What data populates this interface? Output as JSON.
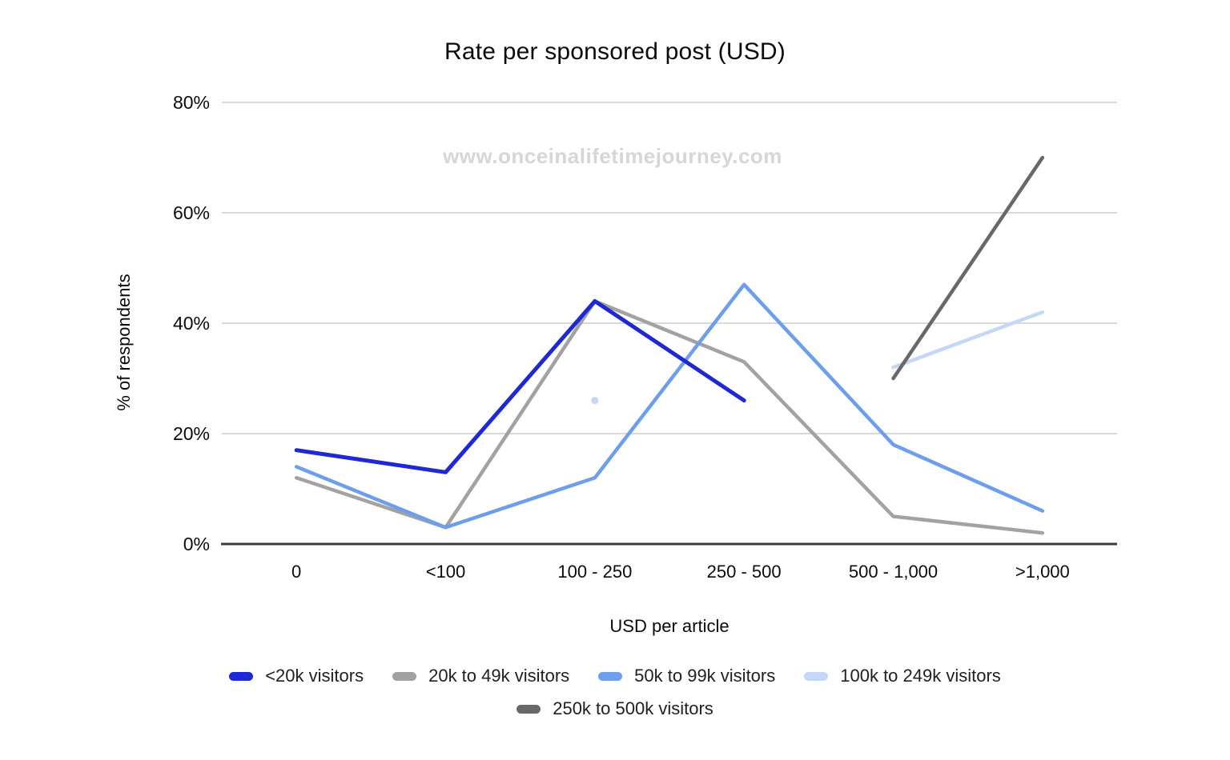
{
  "chart_data": {
    "type": "line",
    "title": "Rate per sponsored post (USD)",
    "watermark": "www.onceinalifetimejourney.com",
    "xlabel": "USD per article",
    "ylabel": "% of respondents",
    "categories": [
      "0",
      "<100",
      "100 - 250",
      "250 - 500",
      "500 - 1,000",
      ">1,000"
    ],
    "y_ticks": [
      {
        "value": 0,
        "label": "0%"
      },
      {
        "value": 20,
        "label": "20%"
      },
      {
        "value": 40,
        "label": "40%"
      },
      {
        "value": 60,
        "label": "60%"
      },
      {
        "value": 80,
        "label": "80%"
      }
    ],
    "ylim": [
      0,
      80
    ],
    "grid": true,
    "legend_position": "bottom",
    "series": [
      {
        "name": "<20k visitors",
        "color": "#1e28d3",
        "values": [
          17,
          13,
          44,
          26,
          null,
          null
        ]
      },
      {
        "name": "20k to 49k visitors",
        "color": "#a2a2a2",
        "values": [
          12,
          3,
          44,
          33,
          5,
          2
        ]
      },
      {
        "name": "50k to 99k visitors",
        "color": "#6d9eeb",
        "values": [
          14,
          3,
          12,
          47,
          18,
          6
        ]
      },
      {
        "name": "100k to 249k visitors",
        "color": "#c5d7f5",
        "values": [
          null,
          null,
          26,
          null,
          32,
          42
        ]
      },
      {
        "name": "250k to 500k visitors",
        "color": "#686868",
        "values": [
          null,
          null,
          null,
          null,
          30,
          70
        ]
      }
    ]
  },
  "colors": {
    "gridline": "#d9d9d9",
    "axis_line": "#3b3b3b",
    "watermark_text": "#d6d6d6"
  }
}
